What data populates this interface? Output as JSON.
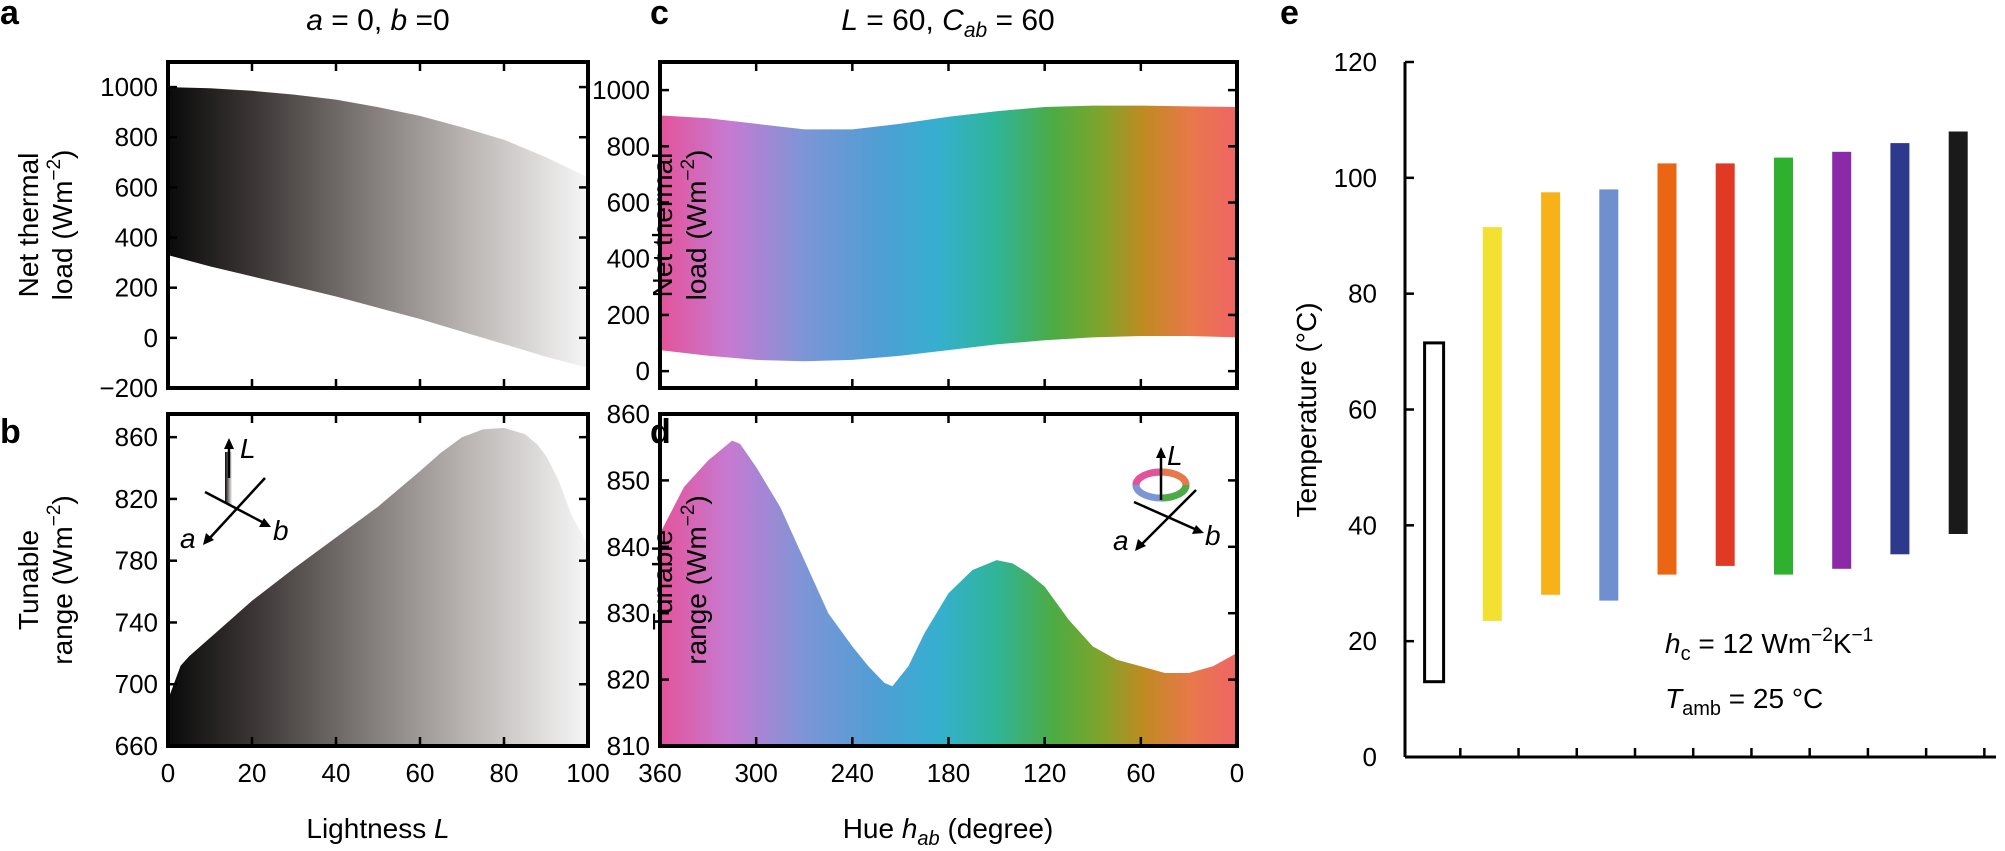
{
  "chart_data": [
    {
      "panel": "a",
      "type": "area",
      "title": "a = 0, b =0",
      "ylabel": "Net thermal load (Wm−2)",
      "ylabel_lines": [
        "Net thermal",
        "load (Wm",
        "−2",
        ")"
      ],
      "xlim": [
        0,
        100
      ],
      "ylim": [
        -200,
        1100
      ],
      "yticks": [
        -200,
        0,
        200,
        400,
        600,
        800,
        1000
      ],
      "x": [
        0,
        10,
        20,
        30,
        40,
        50,
        60,
        70,
        80,
        90,
        100
      ],
      "upper": [
        1000,
        995,
        985,
        970,
        950,
        920,
        885,
        840,
        790,
        720,
        640
      ],
      "lower": [
        330,
        285,
        245,
        205,
        165,
        120,
        75,
        25,
        -25,
        -75,
        -120
      ],
      "fill": "grayscale black to white along x"
    },
    {
      "panel": "b",
      "type": "area",
      "xlabel": "Lightness L",
      "xlabel_parts": [
        "Lightness ",
        "L"
      ],
      "ylabel": "Tunable range (Wm−2)",
      "ylabel_lines": [
        "Tunable",
        "range (Wm",
        "−2",
        ")"
      ],
      "xlim": [
        0,
        100
      ],
      "ylim": [
        660,
        875
      ],
      "xticks": [
        0,
        20,
        40,
        60,
        80,
        100
      ],
      "yticks": [
        660,
        700,
        740,
        780,
        820,
        860
      ],
      "x": [
        0,
        3,
        5,
        10,
        15,
        20,
        30,
        40,
        50,
        60,
        65,
        70,
        75,
        80,
        85,
        88,
        90,
        93,
        96,
        100
      ],
      "upper": [
        690,
        712,
        718,
        730,
        742,
        754,
        775,
        795,
        815,
        838,
        850,
        860,
        865,
        866,
        862,
        855,
        848,
        832,
        810,
        790
      ],
      "fill": "grayscale black to white along x",
      "inset": {
        "axes": [
          "L",
          "a",
          "b"
        ]
      }
    },
    {
      "panel": "c",
      "type": "area",
      "title": "L = 60, Cab = 60",
      "ylabel": "Net thermal load (Wm−2)",
      "ylabel_lines": [
        "Net thermal",
        "load (Wm",
        "−2",
        ")"
      ],
      "xlim": [
        360,
        0
      ],
      "ylim": [
        -60,
        1100
      ],
      "yticks": [
        0,
        200,
        400,
        600,
        800,
        1000
      ],
      "x": [
        360,
        330,
        300,
        270,
        240,
        210,
        180,
        150,
        120,
        90,
        60,
        30,
        0
      ],
      "upper": [
        910,
        900,
        880,
        860,
        860,
        880,
        905,
        925,
        940,
        945,
        945,
        942,
        940
      ],
      "lower": [
        75,
        55,
        40,
        35,
        40,
        55,
        75,
        95,
        110,
        120,
        125,
        125,
        120
      ],
      "fill": "hue gradient along x"
    },
    {
      "panel": "d",
      "type": "area",
      "xlabel": "Hue hab (degree)",
      "xlabel_parts": [
        "Hue ",
        "h",
        "ab",
        " (degree)"
      ],
      "ylabel": "Tunable range (Wm−2)",
      "ylabel_lines": [
        "Tunable",
        "range (Wm",
        "−2",
        ")"
      ],
      "xlim": [
        360,
        0
      ],
      "ylim": [
        810,
        860
      ],
      "xticks": [
        360,
        300,
        240,
        180,
        120,
        60,
        0
      ],
      "yticks": [
        810,
        820,
        830,
        840,
        850,
        860
      ],
      "x": [
        360,
        345,
        330,
        315,
        310,
        300,
        285,
        270,
        255,
        240,
        230,
        220,
        215,
        205,
        195,
        180,
        165,
        150,
        140,
        130,
        120,
        105,
        90,
        75,
        60,
        45,
        30,
        15,
        0
      ],
      "upper": [
        842,
        849,
        853,
        856,
        855.5,
        852,
        846,
        838,
        830,
        825,
        822,
        819.5,
        819,
        822,
        827,
        833,
        836.5,
        838,
        837.5,
        836,
        834,
        829,
        825,
        823,
        822,
        821,
        821,
        822,
        824
      ],
      "fill": "hue gradient along x",
      "inset": {
        "axes": [
          "L",
          "a",
          "b"
        ]
      }
    },
    {
      "panel": "e",
      "type": "bar",
      "ylabel": "Temperature (°C)",
      "ylim": [
        0,
        120
      ],
      "yticks": [
        0,
        20,
        40,
        60,
        80,
        100,
        120
      ],
      "ranges": [
        {
          "color": "#ffffff",
          "outline": true,
          "low": 13,
          "high": 71.5
        },
        {
          "color": "#f2e130",
          "low": 23.5,
          "high": 91.5
        },
        {
          "color": "#f7b21a",
          "low": 28,
          "high": 97.5
        },
        {
          "color": "#6f8fcf",
          "low": 27,
          "high": 98
        },
        {
          "color": "#ea6612",
          "low": 31.5,
          "high": 102.5
        },
        {
          "color": "#e03a24",
          "low": 33,
          "high": 102.5
        },
        {
          "color": "#2fb12f",
          "low": 31.5,
          "high": 103.5
        },
        {
          "color": "#8b2aa8",
          "low": 32.5,
          "high": 104.5
        },
        {
          "color": "#2d3a8c",
          "low": 35,
          "high": 106
        },
        {
          "color": "#1a1a1a",
          "low": 38.5,
          "high": 108
        }
      ],
      "annotation_hc": [
        "h",
        "c",
        " = 12 Wm",
        "−2",
        "K",
        "−1"
      ],
      "annotation_tamb": [
        "T",
        "amb",
        " = 25 °C"
      ]
    }
  ]
}
